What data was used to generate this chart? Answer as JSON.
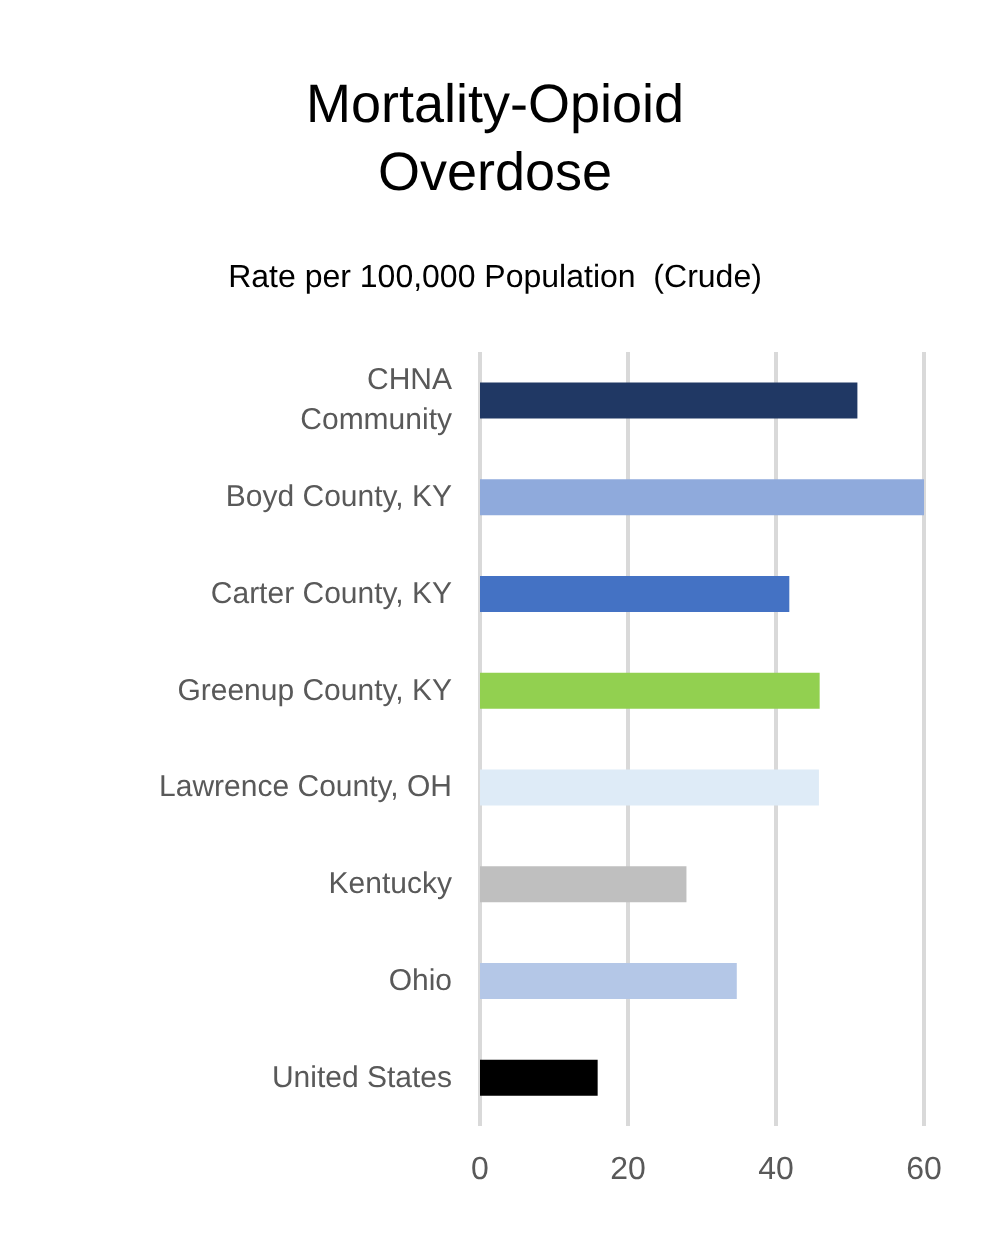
{
  "chart_data": {
    "type": "bar",
    "orientation": "horizontal",
    "title": "Mortality-Opioid\nOverdose",
    "subtitle": "Rate per 100,000 Population  (Crude)",
    "categories": [
      "CHNA\nCommunity",
      "Boyd County, KY",
      "Carter County, KY",
      "Greenup County, KY",
      "Lawrence County, OH",
      "Kentucky",
      "Ohio",
      "United States"
    ],
    "values": [
      51,
      60,
      41.8,
      45.9,
      45.8,
      27.9,
      34.7,
      15.9
    ],
    "colors": [
      "#203864",
      "#8faadc",
      "#4472c4",
      "#92d050",
      "#deebf7",
      "#bfbfbf",
      "#b4c7e7",
      "#000000"
    ],
    "xlim": [
      0,
      60
    ],
    "xticks": [
      0,
      20,
      40,
      60
    ],
    "grid": "x"
  }
}
